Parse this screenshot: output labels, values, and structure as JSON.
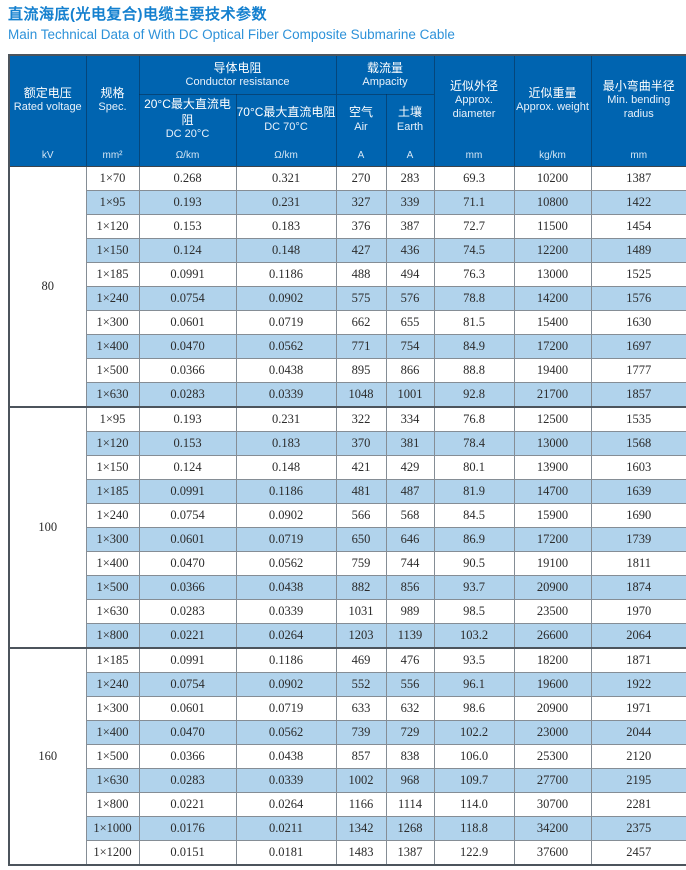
{
  "page": {
    "title_zh": "直流海底(光电复合)电缆主要技术参数",
    "title_en": "Main Technical Data of With DC Optical Fiber Composite Submarine Cable"
  },
  "colors": {
    "header_blue": "#0064b0",
    "stripe_blue": "#b1d3ec",
    "title_blue": "#1480cf",
    "border_gray": "#858d95",
    "border_dark": "#4c545c"
  },
  "table": {
    "header": {
      "rated_voltage": {
        "zh": "额定电压",
        "en": "Rated voltage",
        "unit": "kV"
      },
      "spec": {
        "zh": "规格",
        "en": "Spec.",
        "unit": "mm²"
      },
      "conductor_resistance": {
        "zh": "导体电阻",
        "en": "Conductor resistance",
        "sub": [
          {
            "zh": "20°C最大直流电阻",
            "en": "DC 20°C",
            "unit": "Ω/km"
          },
          {
            "zh": "70°C最大直流电阻",
            "en": "DC 70°C",
            "unit": "Ω/km"
          }
        ]
      },
      "ampacity": {
        "zh": "载流量",
        "en": "Ampacity",
        "sub": [
          {
            "zh": "空气",
            "en": "Air",
            "unit": "A"
          },
          {
            "zh": "土壤",
            "en": "Earth",
            "unit": "A"
          }
        ]
      },
      "approx_diameter": {
        "zh": "近似外径",
        "en": "Approx. diameter",
        "unit": "mm"
      },
      "approx_weight": {
        "zh": "近似重量",
        "en": "Approx. weight",
        "unit": "kg/km"
      },
      "min_bending_radius": {
        "zh": "最小弯曲半径",
        "en": "Min. bending radius",
        "unit": "mm"
      }
    },
    "groups": [
      {
        "voltage": "80",
        "rows": [
          {
            "spec": "1×70",
            "dc20": "0.268",
            "dc70": "0.321",
            "air": "270",
            "earth": "283",
            "diameter": "69.3",
            "weight": "10200",
            "radius": "1387"
          },
          {
            "spec": "1×95",
            "dc20": "0.193",
            "dc70": "0.231",
            "air": "327",
            "earth": "339",
            "diameter": "71.1",
            "weight": "10800",
            "radius": "1422"
          },
          {
            "spec": "1×120",
            "dc20": "0.153",
            "dc70": "0.183",
            "air": "376",
            "earth": "387",
            "diameter": "72.7",
            "weight": "11500",
            "radius": "1454"
          },
          {
            "spec": "1×150",
            "dc20": "0.124",
            "dc70": "0.148",
            "air": "427",
            "earth": "436",
            "diameter": "74.5",
            "weight": "12200",
            "radius": "1489"
          },
          {
            "spec": "1×185",
            "dc20": "0.0991",
            "dc70": "0.1186",
            "air": "488",
            "earth": "494",
            "diameter": "76.3",
            "weight": "13000",
            "radius": "1525"
          },
          {
            "spec": "1×240",
            "dc20": "0.0754",
            "dc70": "0.0902",
            "air": "575",
            "earth": "576",
            "diameter": "78.8",
            "weight": "14200",
            "radius": "1576"
          },
          {
            "spec": "1×300",
            "dc20": "0.0601",
            "dc70": "0.0719",
            "air": "662",
            "earth": "655",
            "diameter": "81.5",
            "weight": "15400",
            "radius": "1630"
          },
          {
            "spec": "1×400",
            "dc20": "0.0470",
            "dc70": "0.0562",
            "air": "771",
            "earth": "754",
            "diameter": "84.9",
            "weight": "17200",
            "radius": "1697"
          },
          {
            "spec": "1×500",
            "dc20": "0.0366",
            "dc70": "0.0438",
            "air": "895",
            "earth": "866",
            "diameter": "88.8",
            "weight": "19400",
            "radius": "1777"
          },
          {
            "spec": "1×630",
            "dc20": "0.0283",
            "dc70": "0.0339",
            "air": "1048",
            "earth": "1001",
            "diameter": "92.8",
            "weight": "21700",
            "radius": "1857"
          }
        ]
      },
      {
        "voltage": "100",
        "rows": [
          {
            "spec": "1×95",
            "dc20": "0.193",
            "dc70": "0.231",
            "air": "322",
            "earth": "334",
            "diameter": "76.8",
            "weight": "12500",
            "radius": "1535"
          },
          {
            "spec": "1×120",
            "dc20": "0.153",
            "dc70": "0.183",
            "air": "370",
            "earth": "381",
            "diameter": "78.4",
            "weight": "13000",
            "radius": "1568"
          },
          {
            "spec": "1×150",
            "dc20": "0.124",
            "dc70": "0.148",
            "air": "421",
            "earth": "429",
            "diameter": "80.1",
            "weight": "13900",
            "radius": "1603"
          },
          {
            "spec": "1×185",
            "dc20": "0.0991",
            "dc70": "0.1186",
            "air": "481",
            "earth": "487",
            "diameter": "81.9",
            "weight": "14700",
            "radius": "1639"
          },
          {
            "spec": "1×240",
            "dc20": "0.0754",
            "dc70": "0.0902",
            "air": "566",
            "earth": "568",
            "diameter": "84.5",
            "weight": "15900",
            "radius": "1690"
          },
          {
            "spec": "1×300",
            "dc20": "0.0601",
            "dc70": "0.0719",
            "air": "650",
            "earth": "646",
            "diameter": "86.9",
            "weight": "17200",
            "radius": "1739"
          },
          {
            "spec": "1×400",
            "dc20": "0.0470",
            "dc70": "0.0562",
            "air": "759",
            "earth": "744",
            "diameter": "90.5",
            "weight": "19100",
            "radius": "1811"
          },
          {
            "spec": "1×500",
            "dc20": "0.0366",
            "dc70": "0.0438",
            "air": "882",
            "earth": "856",
            "diameter": "93.7",
            "weight": "20900",
            "radius": "1874"
          },
          {
            "spec": "1×630",
            "dc20": "0.0283",
            "dc70": "0.0339",
            "air": "1031",
            "earth": "989",
            "diameter": "98.5",
            "weight": "23500",
            "radius": "1970"
          },
          {
            "spec": "1×800",
            "dc20": "0.0221",
            "dc70": "0.0264",
            "air": "1203",
            "earth": "1139",
            "diameter": "103.2",
            "weight": "26600",
            "radius": "2064"
          }
        ]
      },
      {
        "voltage": "160",
        "rows": [
          {
            "spec": "1×185",
            "dc20": "0.0991",
            "dc70": "0.1186",
            "air": "469",
            "earth": "476",
            "diameter": "93.5",
            "weight": "18200",
            "radius": "1871"
          },
          {
            "spec": "1×240",
            "dc20": "0.0754",
            "dc70": "0.0902",
            "air": "552",
            "earth": "556",
            "diameter": "96.1",
            "weight": "19600",
            "radius": "1922"
          },
          {
            "spec": "1×300",
            "dc20": "0.0601",
            "dc70": "0.0719",
            "air": "633",
            "earth": "632",
            "diameter": "98.6",
            "weight": "20900",
            "radius": "1971"
          },
          {
            "spec": "1×400",
            "dc20": "0.0470",
            "dc70": "0.0562",
            "air": "739",
            "earth": "729",
            "diameter": "102.2",
            "weight": "23000",
            "radius": "2044"
          },
          {
            "spec": "1×500",
            "dc20": "0.0366",
            "dc70": "0.0438",
            "air": "857",
            "earth": "838",
            "diameter": "106.0",
            "weight": "25300",
            "radius": "2120"
          },
          {
            "spec": "1×630",
            "dc20": "0.0283",
            "dc70": "0.0339",
            "air": "1002",
            "earth": "968",
            "diameter": "109.7",
            "weight": "27700",
            "radius": "2195"
          },
          {
            "spec": "1×800",
            "dc20": "0.0221",
            "dc70": "0.0264",
            "air": "1166",
            "earth": "1114",
            "diameter": "114.0",
            "weight": "30700",
            "radius": "2281"
          },
          {
            "spec": "1×1000",
            "dc20": "0.0176",
            "dc70": "0.0211",
            "air": "1342",
            "earth": "1268",
            "diameter": "118.8",
            "weight": "34200",
            "radius": "2375"
          },
          {
            "spec": "1×1200",
            "dc20": "0.0151",
            "dc70": "0.0181",
            "air": "1483",
            "earth": "1387",
            "diameter": "122.9",
            "weight": "37600",
            "radius": "2457"
          }
        ]
      }
    ]
  }
}
